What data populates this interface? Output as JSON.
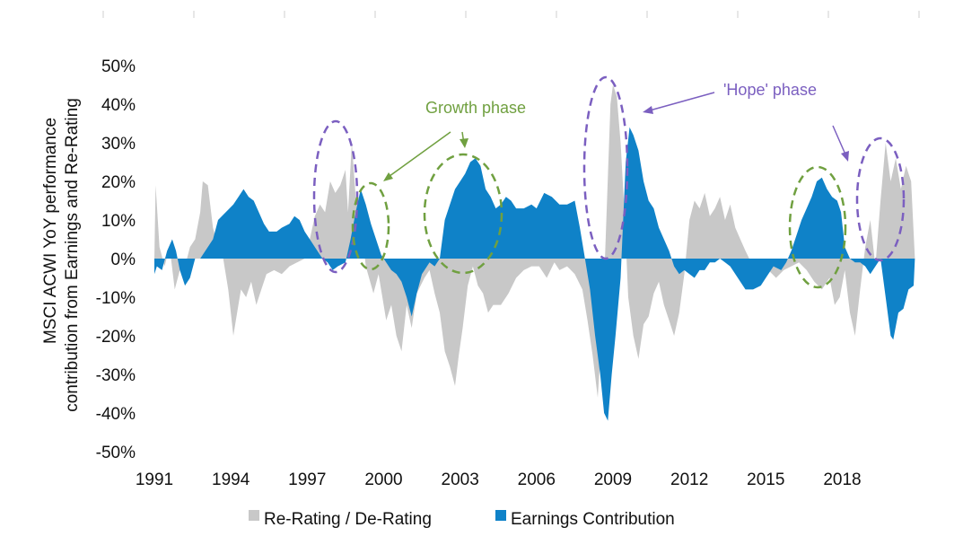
{
  "chart_data": {
    "type": "area",
    "ylabel": "MSCI ACWI YoY performance contribution from Earnings and Re-Rating",
    "ylabel_lines": [
      "MSCI ACWI YoY performance",
      "contribution from Earnings and Re-Rating"
    ],
    "ylim": [
      -50,
      50
    ],
    "yticks": [
      -50,
      -40,
      -30,
      -20,
      -10,
      0,
      10,
      20,
      30,
      40,
      50
    ],
    "ytick_labels": [
      "-50%",
      "-40%",
      "-30%",
      "-20%",
      "-10%",
      "0%",
      "10%",
      "20%",
      "30%",
      "40%",
      "50%"
    ],
    "xlim": [
      1991,
      2020.9
    ],
    "xticks": [
      1991,
      1994,
      1997,
      2000,
      2003,
      2006,
      2009,
      2012,
      2015,
      2018
    ],
    "xtick_labels": [
      "1991",
      "1994",
      "1997",
      "2000",
      "2003",
      "2006",
      "2009",
      "2012",
      "2015",
      "2018"
    ],
    "grid": false,
    "legend_position": "bottom",
    "series": [
      {
        "name": "Re-Rating / De-Rating",
        "color": "#c8c8c8",
        "points": [
          [
            1991.0,
            0
          ],
          [
            1991.05,
            19
          ],
          [
            1991.2,
            3
          ],
          [
            1991.4,
            -2
          ],
          [
            1991.6,
            3
          ],
          [
            1991.8,
            -8
          ],
          [
            1992.0,
            -3
          ],
          [
            1992.2,
            -2
          ],
          [
            1992.4,
            3
          ],
          [
            1992.6,
            5
          ],
          [
            1992.8,
            12
          ],
          [
            1992.9,
            20
          ],
          [
            1993.1,
            19
          ],
          [
            1993.3,
            8
          ],
          [
            1993.5,
            3
          ],
          [
            1993.7,
            0
          ],
          [
            1993.9,
            -8
          ],
          [
            1994.0,
            -14
          ],
          [
            1994.1,
            -20
          ],
          [
            1994.2,
            -16
          ],
          [
            1994.4,
            -8
          ],
          [
            1994.6,
            -10
          ],
          [
            1994.8,
            -6
          ],
          [
            1995.0,
            -12
          ],
          [
            1995.2,
            -8
          ],
          [
            1995.4,
            -4
          ],
          [
            1995.7,
            -3
          ],
          [
            1996.0,
            -4
          ],
          [
            1996.3,
            -2
          ],
          [
            1996.6,
            -1
          ],
          [
            1996.9,
            0
          ],
          [
            1997.1,
            5
          ],
          [
            1997.3,
            11
          ],
          [
            1997.5,
            14
          ],
          [
            1997.7,
            12
          ],
          [
            1997.9,
            20
          ],
          [
            1998.1,
            17
          ],
          [
            1998.3,
            19
          ],
          [
            1998.5,
            23
          ],
          [
            1998.6,
            12
          ],
          [
            1998.75,
            30
          ],
          [
            1998.9,
            16
          ],
          [
            1999.1,
            10
          ],
          [
            1999.3,
            -2
          ],
          [
            1999.6,
            -9
          ],
          [
            1999.8,
            -4
          ],
          [
            2000.1,
            -16
          ],
          [
            2000.3,
            -12
          ],
          [
            2000.5,
            -20
          ],
          [
            2000.7,
            -24
          ],
          [
            2000.9,
            -12
          ],
          [
            2001.1,
            -18
          ],
          [
            2001.3,
            -9
          ],
          [
            2001.6,
            -5
          ],
          [
            2001.8,
            -3
          ],
          [
            2002.0,
            -9
          ],
          [
            2002.2,
            -14
          ],
          [
            2002.4,
            -24
          ],
          [
            2002.6,
            -28
          ],
          [
            2002.8,
            -33
          ],
          [
            2002.95,
            -25
          ],
          [
            2003.1,
            -18
          ],
          [
            2003.3,
            -7
          ],
          [
            2003.5,
            -2
          ],
          [
            2003.7,
            -7
          ],
          [
            2003.9,
            -9
          ],
          [
            2004.1,
            -14
          ],
          [
            2004.3,
            -12
          ],
          [
            2004.6,
            -12
          ],
          [
            2004.9,
            -9
          ],
          [
            2005.2,
            -5
          ],
          [
            2005.5,
            -3
          ],
          [
            2005.8,
            -2
          ],
          [
            2006.1,
            -2
          ],
          [
            2006.4,
            -5
          ],
          [
            2006.7,
            -1
          ],
          [
            2006.9,
            -3
          ],
          [
            2007.2,
            -2
          ],
          [
            2007.5,
            -4
          ],
          [
            2007.8,
            -8
          ],
          [
            2008.0,
            -16
          ],
          [
            2008.2,
            -25
          ],
          [
            2008.4,
            -36
          ],
          [
            2008.6,
            -16
          ],
          [
            2008.75,
            12
          ],
          [
            2008.9,
            40
          ],
          [
            2009.0,
            45
          ],
          [
            2009.15,
            42
          ],
          [
            2009.3,
            30
          ],
          [
            2009.45,
            12
          ],
          [
            2009.6,
            -10
          ],
          [
            2009.8,
            -20
          ],
          [
            2010.0,
            -26
          ],
          [
            2010.2,
            -17
          ],
          [
            2010.4,
            -15
          ],
          [
            2010.6,
            -9
          ],
          [
            2010.8,
            -6
          ],
          [
            2011.0,
            -12
          ],
          [
            2011.2,
            -16
          ],
          [
            2011.4,
            -20
          ],
          [
            2011.6,
            -14
          ],
          [
            2011.8,
            -4
          ],
          [
            2012.0,
            10
          ],
          [
            2012.2,
            15
          ],
          [
            2012.4,
            13
          ],
          [
            2012.6,
            17
          ],
          [
            2012.8,
            11
          ],
          [
            2013.0,
            13
          ],
          [
            2013.2,
            16
          ],
          [
            2013.4,
            10
          ],
          [
            2013.6,
            14
          ],
          [
            2013.8,
            8
          ],
          [
            2014.0,
            5
          ],
          [
            2014.2,
            2
          ],
          [
            2014.5,
            -2
          ],
          [
            2014.8,
            -1
          ],
          [
            2015.1,
            -3
          ],
          [
            2015.4,
            -5
          ],
          [
            2015.7,
            -3
          ],
          [
            2016.0,
            -2
          ],
          [
            2016.3,
            -1
          ],
          [
            2016.6,
            -3
          ],
          [
            2016.9,
            -6
          ],
          [
            2017.2,
            -8
          ],
          [
            2017.5,
            -5
          ],
          [
            2017.7,
            -12
          ],
          [
            2017.9,
            -10
          ],
          [
            2018.1,
            -3
          ],
          [
            2018.3,
            -14
          ],
          [
            2018.5,
            -20
          ],
          [
            2018.7,
            -8
          ],
          [
            2018.9,
            3
          ],
          [
            2019.1,
            10
          ],
          [
            2019.3,
            -2
          ],
          [
            2019.5,
            15
          ],
          [
            2019.7,
            30
          ],
          [
            2019.9,
            20
          ],
          [
            2020.1,
            26
          ],
          [
            2020.3,
            18
          ],
          [
            2020.5,
            24
          ],
          [
            2020.7,
            20
          ],
          [
            2020.85,
            0
          ]
        ]
      },
      {
        "name": "Earnings Contribution",
        "color": "#0f82c8",
        "points": [
          [
            1991.0,
            -4
          ],
          [
            1991.1,
            -2
          ],
          [
            1991.3,
            -3
          ],
          [
            1991.5,
            2
          ],
          [
            1991.7,
            5
          ],
          [
            1991.85,
            2
          ],
          [
            1992.0,
            -3
          ],
          [
            1992.2,
            -7
          ],
          [
            1992.4,
            -5
          ],
          [
            1992.6,
            0
          ],
          [
            1992.8,
            0
          ],
          [
            1993.0,
            2
          ],
          [
            1993.3,
            5
          ],
          [
            1993.5,
            10
          ],
          [
            1993.8,
            12
          ],
          [
            1994.1,
            14
          ],
          [
            1994.3,
            16
          ],
          [
            1994.5,
            18
          ],
          [
            1994.7,
            16
          ],
          [
            1994.9,
            15
          ],
          [
            1995.1,
            12
          ],
          [
            1995.3,
            9
          ],
          [
            1995.5,
            7
          ],
          [
            1995.8,
            7
          ],
          [
            1996.0,
            8
          ],
          [
            1996.3,
            9
          ],
          [
            1996.5,
            11
          ],
          [
            1996.7,
            10
          ],
          [
            1996.9,
            7
          ],
          [
            1997.1,
            5
          ],
          [
            1997.3,
            3
          ],
          [
            1997.5,
            1
          ],
          [
            1997.6,
            0
          ],
          [
            1997.8,
            -1
          ],
          [
            1998.0,
            -3
          ],
          [
            1998.2,
            -2
          ],
          [
            1998.5,
            -1
          ],
          [
            1998.7,
            5
          ],
          [
            1998.9,
            12
          ],
          [
            1999.1,
            18
          ],
          [
            1999.3,
            14
          ],
          [
            1999.5,
            9
          ],
          [
            1999.7,
            5
          ],
          [
            1999.9,
            1
          ],
          [
            2000.1,
            -1
          ],
          [
            2000.3,
            -3
          ],
          [
            2000.5,
            -4
          ],
          [
            2000.7,
            -6
          ],
          [
            2000.9,
            -10
          ],
          [
            2001.1,
            -15
          ],
          [
            2001.3,
            -9
          ],
          [
            2001.5,
            -4
          ],
          [
            2001.8,
            -1
          ],
          [
            2002.0,
            -2
          ],
          [
            2002.2,
            0
          ],
          [
            2002.4,
            10
          ],
          [
            2002.6,
            14
          ],
          [
            2002.8,
            18
          ],
          [
            2003.0,
            20
          ],
          [
            2003.2,
            22
          ],
          [
            2003.4,
            25
          ],
          [
            2003.6,
            26
          ],
          [
            2003.8,
            24
          ],
          [
            2004.0,
            18
          ],
          [
            2004.2,
            16
          ],
          [
            2004.4,
            13
          ],
          [
            2004.6,
            14
          ],
          [
            2004.8,
            16
          ],
          [
            2005.0,
            15
          ],
          [
            2005.2,
            13
          ],
          [
            2005.5,
            13
          ],
          [
            2005.8,
            14
          ],
          [
            2006.0,
            13
          ],
          [
            2006.3,
            17
          ],
          [
            2006.6,
            16
          ],
          [
            2006.9,
            14
          ],
          [
            2007.2,
            14
          ],
          [
            2007.5,
            15
          ],
          [
            2007.7,
            8
          ],
          [
            2007.9,
            0
          ],
          [
            2008.1,
            -8
          ],
          [
            2008.3,
            -20
          ],
          [
            2008.5,
            -30
          ],
          [
            2008.65,
            -40
          ],
          [
            2008.8,
            -42
          ],
          [
            2008.95,
            -30
          ],
          [
            2009.1,
            -20
          ],
          [
            2009.3,
            -5
          ],
          [
            2009.5,
            25
          ],
          [
            2009.65,
            34
          ],
          [
            2009.8,
            32
          ],
          [
            2010.0,
            28
          ],
          [
            2010.2,
            20
          ],
          [
            2010.4,
            15
          ],
          [
            2010.6,
            13
          ],
          [
            2010.8,
            8
          ],
          [
            2011.0,
            5
          ],
          [
            2011.2,
            2
          ],
          [
            2011.4,
            -2
          ],
          [
            2011.6,
            -4
          ],
          [
            2011.8,
            -3
          ],
          [
            2012.0,
            -4
          ],
          [
            2012.2,
            -5
          ],
          [
            2012.4,
            -3
          ],
          [
            2012.6,
            -3
          ],
          [
            2012.8,
            -1
          ],
          [
            2013.0,
            -1
          ],
          [
            2013.2,
            0
          ],
          [
            2013.4,
            -1
          ],
          [
            2013.6,
            -2
          ],
          [
            2013.8,
            -4
          ],
          [
            2014.0,
            -6
          ],
          [
            2014.2,
            -8
          ],
          [
            2014.5,
            -8
          ],
          [
            2014.8,
            -7
          ],
          [
            2015.0,
            -5
          ],
          [
            2015.3,
            -2
          ],
          [
            2015.6,
            -3
          ],
          [
            2015.8,
            -1
          ],
          [
            2016.0,
            2
          ],
          [
            2016.2,
            6
          ],
          [
            2016.4,
            10
          ],
          [
            2016.6,
            13
          ],
          [
            2016.8,
            16
          ],
          [
            2017.0,
            20
          ],
          [
            2017.2,
            21
          ],
          [
            2017.4,
            18
          ],
          [
            2017.6,
            16
          ],
          [
            2017.8,
            15
          ],
          [
            2017.95,
            12
          ],
          [
            2018.1,
            3
          ],
          [
            2018.3,
            0
          ],
          [
            2018.5,
            -1
          ],
          [
            2018.7,
            -1
          ],
          [
            2018.9,
            -2
          ],
          [
            2019.1,
            -4
          ],
          [
            2019.3,
            -2
          ],
          [
            2019.5,
            0
          ],
          [
            2019.7,
            -10
          ],
          [
            2019.9,
            -20
          ],
          [
            2020.0,
            -21
          ],
          [
            2020.2,
            -14
          ],
          [
            2020.4,
            -13
          ],
          [
            2020.6,
            -8
          ],
          [
            2020.8,
            -7
          ],
          [
            2020.85,
            0
          ]
        ]
      }
    ],
    "annotations": [
      {
        "text": "Growth phase",
        "color": "#70a040"
      },
      {
        "text": "'Hope' phase",
        "color": "#7b5fc0"
      }
    ]
  }
}
